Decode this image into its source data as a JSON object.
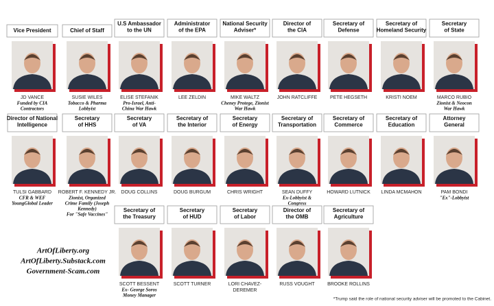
{
  "rows": [
    [
      {
        "title": [
          "Vice President"
        ],
        "name": [
          "JD VANCE"
        ],
        "note": [
          "Funded by CIA",
          "Contractors"
        ]
      },
      {
        "title": [
          "Chief of Staff"
        ],
        "name": [
          "SUSIE WILES"
        ],
        "note": [
          "Tobacco & Pharma",
          "Lobbyist"
        ]
      },
      {
        "title": [
          "U.S Ambassador",
          "to the UN"
        ],
        "name": [
          "ELISE STEFANIK"
        ],
        "note": [
          "Pro-Israel, Anti-",
          "China War Hawk"
        ]
      },
      {
        "title": [
          "Administrator",
          "of the EPA"
        ],
        "name": [
          "LEE ZELDIN"
        ]
      },
      {
        "title": [
          "National Security",
          "Adviser*"
        ],
        "name": [
          "MIKE WALTZ"
        ],
        "note": [
          "Cheney Protege, Zionist",
          "War Hawk"
        ]
      },
      {
        "title": [
          "Director of",
          "the CIA"
        ],
        "name": [
          "JOHN RATCLIFFE"
        ]
      },
      {
        "title": [
          "Secretary of",
          "Defense"
        ],
        "name": [
          "PETE HEGSETH"
        ]
      },
      {
        "title": [
          "Secretary of",
          "Homeland Security"
        ],
        "name": [
          "KRISTI NOEM"
        ]
      },
      {
        "title": [
          "Secretary",
          "of State"
        ],
        "name": [
          "MARCO RUBIO"
        ],
        "note": [
          "Zionist & Neocon",
          "War Hawk"
        ]
      }
    ],
    [
      {
        "title": [
          "Director of National",
          "Intelligence"
        ],
        "name": [
          "TULSI GABBARD"
        ],
        "note": [
          "CFR & WEF",
          "YoungGlobal Leader"
        ]
      },
      {
        "title": [
          "Secretary",
          "of HHS"
        ],
        "name": [
          "ROBERT F. KENNEDY JR."
        ],
        "note": [
          "Zionist, Organized",
          "Crime Family (Joseph",
          "Kennedy)",
          "For \"Safe Vaccines\""
        ]
      },
      {
        "title": [
          "Secretary",
          "of VA"
        ],
        "name": [
          "DOUG COLLINS"
        ]
      },
      {
        "title": [
          "Secretary of",
          "the Interior"
        ],
        "name": [
          "DOUG BURGUM"
        ]
      },
      {
        "title": [
          "Secretary",
          "of Energy"
        ],
        "name": [
          "CHRIS WRIGHT"
        ]
      },
      {
        "title": [
          "Secretary of",
          "Transportation"
        ],
        "name": [
          "SEAN DUFFY"
        ],
        "note": [
          "Ex-Lobbyist &",
          "Congress"
        ]
      },
      {
        "title": [
          "Secretary of",
          "Commerce"
        ],
        "name": [
          "HOWARD LUTNICK"
        ]
      },
      {
        "title": [
          "Secretary of",
          "Education"
        ],
        "name": [
          "LINDA MCMAHON"
        ]
      },
      {
        "title": [
          "Attorney",
          "General"
        ],
        "name": [
          "PAM BONDI"
        ],
        "note": [
          "\"Ex\"-Lobbyist"
        ]
      }
    ],
    [
      {
        "title": [
          "Secretary of",
          "the Treasury"
        ],
        "name": [
          "SCOTT BESSENT"
        ],
        "note": [
          "Ex- George Soros",
          "Money Manager"
        ]
      },
      {
        "title": [
          "Secretary",
          "of HUD"
        ],
        "name": [
          "SCOTT TURNER"
        ]
      },
      {
        "title": [
          "Secretary",
          "of Labor"
        ],
        "name": [
          "LORI CHAVEZ-",
          "DEREMER"
        ]
      },
      {
        "title": [
          "Director of",
          "the OMB"
        ],
        "name": [
          "RUSS VOUGHT"
        ]
      },
      {
        "title": [
          "Secretary of",
          "Agriculture"
        ],
        "name": [
          "BROOKE ROLLINS"
        ]
      }
    ]
  ],
  "sites": [
    "ArtOfLiberty.org",
    "ArtOfLiberty.Substack.com",
    "Government-Scam.com"
  ],
  "footnote": "*Trump said the role of national security adviser will be promoted to the Cabinet."
}
